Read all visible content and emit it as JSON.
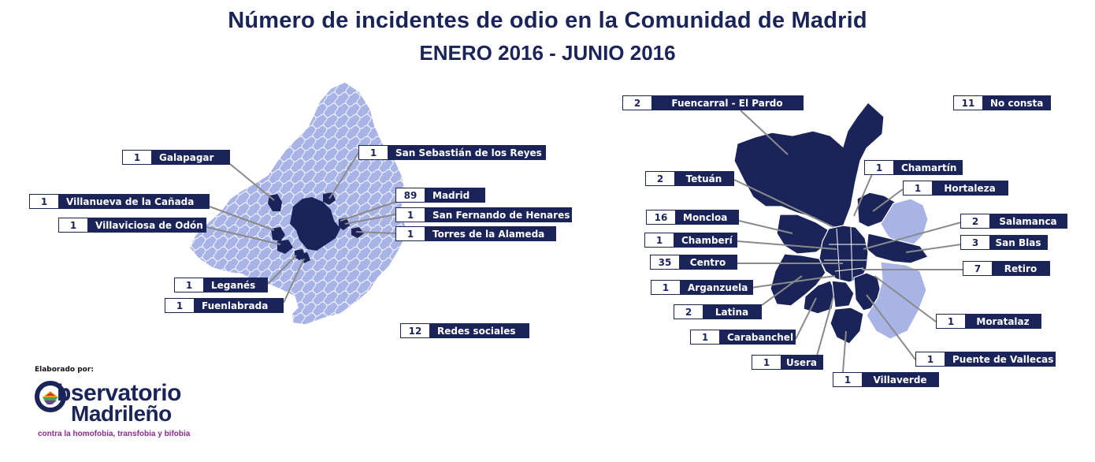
{
  "header": {
    "title": "Número de incidentes de odio en la Comunidad de Madrid",
    "subtitle": "ENERO 2016 - JUNIO 2016"
  },
  "colors": {
    "dark": "#1b2459",
    "light": "#a9b4e6",
    "label_bg": "#1b2459",
    "label_text": "#ffffff"
  },
  "region_map": {
    "labels": [
      {
        "count": "1",
        "name": "Galapagar"
      },
      {
        "count": "1",
        "name": "Villanueva de la Cañada"
      },
      {
        "count": "1",
        "name": "Villaviciosa de Odón"
      },
      {
        "count": "1",
        "name": "San Sebastián de los Reyes"
      },
      {
        "count": "89",
        "name": "Madrid"
      },
      {
        "count": "1",
        "name": "San Fernando de Henares"
      },
      {
        "count": "1",
        "name": "Torres de la Alameda"
      },
      {
        "count": "1",
        "name": "Leganés"
      },
      {
        "count": "1",
        "name": "Fuenlabrada"
      },
      {
        "count": "12",
        "name": "Redes sociales"
      }
    ]
  },
  "city_map": {
    "labels": [
      {
        "count": "2",
        "name": "Fuencarral - El Pardo"
      },
      {
        "count": "11",
        "name": "No consta"
      },
      {
        "count": "2",
        "name": "Tetuán"
      },
      {
        "count": "1",
        "name": "Chamartín"
      },
      {
        "count": "1",
        "name": "Hortaleza"
      },
      {
        "count": "16",
        "name": "Moncloa"
      },
      {
        "count": "2",
        "name": "Salamanca"
      },
      {
        "count": "1",
        "name": "Chamberí"
      },
      {
        "count": "3",
        "name": "San Blas"
      },
      {
        "count": "35",
        "name": "Centro"
      },
      {
        "count": "7",
        "name": "Retiro"
      },
      {
        "count": "1",
        "name": "Arganzuela"
      },
      {
        "count": "2",
        "name": "Latina"
      },
      {
        "count": "1",
        "name": "Moratalaz"
      },
      {
        "count": "1",
        "name": "Carabanchel"
      },
      {
        "count": "1",
        "name": "Puente de Vallecas"
      },
      {
        "count": "1",
        "name": "Usera"
      },
      {
        "count": "1",
        "name": "Villaverde"
      }
    ]
  },
  "credit": {
    "elaborado": "Elaborado por:",
    "logo_line1": "bservatorio",
    "logo_line2": "Madrileño",
    "logo_tagline": "contra la homofobia, transfobia y bifobia"
  }
}
